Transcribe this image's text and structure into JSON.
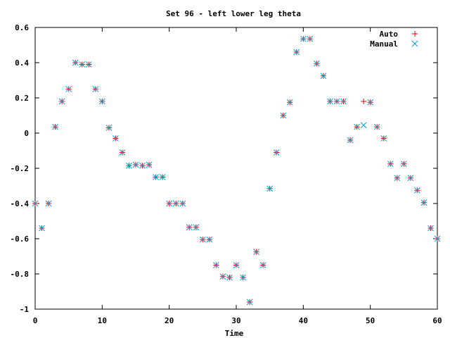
{
  "chart_data": {
    "type": "scatter",
    "title": "Set 96 - left lower leg theta",
    "xlabel": "Time",
    "ylabel": "",
    "xlim": [
      0,
      60
    ],
    "ylim": [
      -1,
      0.6
    ],
    "x_ticks": [
      0,
      10,
      20,
      30,
      40,
      50,
      60
    ],
    "y_ticks": [
      -1,
      -0.8,
      -0.6,
      -0.4,
      -0.2,
      0,
      0.2,
      0.4,
      0.6
    ],
    "x_tick_labels": [
      "0",
      "10",
      "20",
      "30",
      "40",
      "50",
      "60"
    ],
    "y_tick_labels": [
      "-1",
      "-0.8",
      "-0.6",
      "-0.4",
      "-0.2",
      "0",
      "0.2",
      "0.4",
      "0.6"
    ],
    "legend_position": "top-right",
    "grid": false,
    "series": [
      {
        "name": "Auto",
        "marker": "plus",
        "color": "#ff0000",
        "x": [
          0,
          1,
          2,
          3,
          4,
          5,
          6,
          7,
          8,
          9,
          10,
          11,
          12,
          13,
          14,
          15,
          16,
          17,
          18,
          19,
          20,
          21,
          22,
          23,
          24,
          25,
          26,
          27,
          28,
          29,
          30,
          31,
          32,
          33,
          34,
          35,
          36,
          37,
          38,
          39,
          40,
          41,
          42,
          43,
          44,
          45,
          46,
          47,
          48,
          49,
          50,
          51,
          52,
          53,
          54,
          55,
          56,
          57,
          58,
          59,
          60
        ],
        "y": [
          -0.4,
          -0.54,
          -0.4,
          0.035,
          0.18,
          0.25,
          0.4,
          0.39,
          0.39,
          0.25,
          0.18,
          0.03,
          -0.03,
          -0.11,
          -0.185,
          -0.18,
          -0.185,
          -0.18,
          -0.25,
          -0.25,
          -0.4,
          -0.4,
          -0.4,
          -0.535,
          -0.535,
          -0.605,
          -0.605,
          -0.75,
          -0.815,
          -0.82,
          -0.75,
          -0.82,
          -0.96,
          -0.675,
          -0.75,
          -0.315,
          -0.11,
          0.1,
          0.175,
          0.46,
          0.535,
          0.535,
          0.395,
          0.325,
          0.18,
          0.18,
          0.18,
          -0.04,
          0.035,
          0.18,
          0.175,
          0.035,
          -0.03,
          -0.175,
          -0.255,
          -0.175,
          -0.255,
          -0.325,
          -0.395,
          -0.54,
          -0.6
        ]
      },
      {
        "name": "Manual",
        "marker": "cross",
        "color": "#00a0e0",
        "x": [
          0,
          1,
          2,
          3,
          4,
          5,
          6,
          7,
          8,
          9,
          10,
          11,
          12,
          13,
          14,
          15,
          16,
          17,
          18,
          19,
          20,
          21,
          22,
          23,
          24,
          25,
          26,
          27,
          28,
          29,
          30,
          31,
          32,
          33,
          34,
          35,
          36,
          37,
          38,
          39,
          40,
          41,
          42,
          43,
          44,
          45,
          46,
          47,
          48,
          49,
          50,
          51,
          52,
          53,
          54,
          55,
          56,
          57,
          58,
          59,
          60
        ],
        "y": [
          -0.4,
          -0.54,
          -0.4,
          0.035,
          0.18,
          0.25,
          0.4,
          0.39,
          0.39,
          0.25,
          0.18,
          0.03,
          -0.03,
          -0.11,
          -0.185,
          -0.18,
          -0.185,
          -0.18,
          -0.25,
          -0.25,
          -0.4,
          -0.4,
          -0.4,
          -0.535,
          -0.535,
          -0.605,
          -0.605,
          -0.75,
          -0.815,
          -0.82,
          -0.75,
          -0.82,
          -0.96,
          -0.675,
          -0.75,
          -0.315,
          -0.11,
          0.1,
          0.175,
          0.46,
          0.535,
          0.535,
          0.395,
          0.325,
          0.18,
          0.18,
          0.18,
          -0.04,
          0.035,
          0.045,
          0.175,
          0.035,
          -0.03,
          -0.175,
          -0.255,
          -0.175,
          -0.255,
          -0.325,
          -0.395,
          -0.54,
          -0.6
        ]
      }
    ]
  }
}
